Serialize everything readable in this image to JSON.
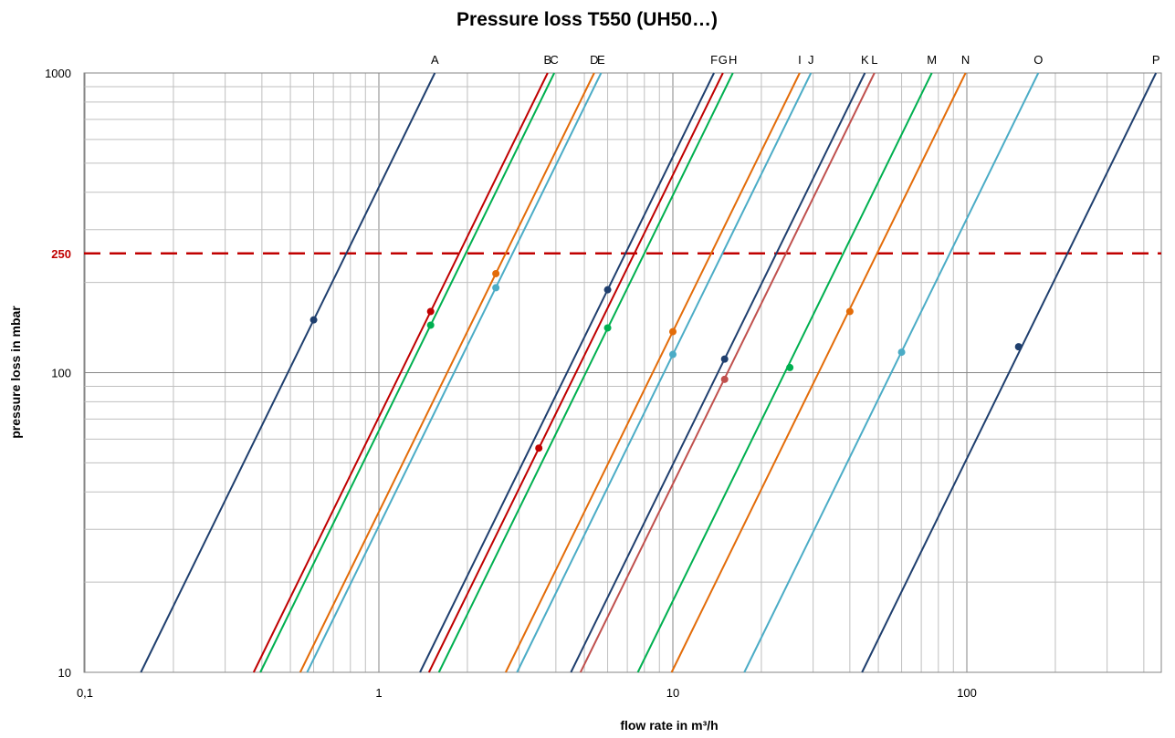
{
  "chart_data": {
    "type": "line",
    "title": "Pressure loss T550 (UH50…)",
    "xlabel": "flow rate in m³/h",
    "ylabel": "pressure loss in mbar",
    "x_scale": "log",
    "y_scale": "log",
    "xlim": [
      0.1,
      700
    ],
    "ylim": [
      10,
      1000
    ],
    "x_ticks": [
      {
        "value": 0.1,
        "label": "0,1"
      },
      {
        "value": 1,
        "label": "1"
      },
      {
        "value": 10,
        "label": "10"
      },
      {
        "value": 100,
        "label": "100"
      }
    ],
    "y_ticks": [
      {
        "value": 10,
        "label": "10"
      },
      {
        "value": 100,
        "label": "100"
      },
      {
        "value": 1000,
        "label": "1000"
      }
    ],
    "grid": true,
    "reference_line": {
      "y": 250,
      "label": "250",
      "color": "#c00000",
      "style": "dashed"
    },
    "series": [
      {
        "name": "A",
        "color": "#1f3f6e",
        "x": [
          0.155,
          1.55
        ],
        "y": [
          10,
          1000
        ],
        "marker": {
          "x": 0.6,
          "y": 150
        }
      },
      {
        "name": "B",
        "color": "#c00000",
        "x": [
          0.375,
          3.75
        ],
        "y": [
          10,
          1000
        ],
        "marker": {
          "x": 1.5,
          "y": 160
        }
      },
      {
        "name": "C",
        "color": "#00b050",
        "x": [
          0.395,
          3.95
        ],
        "y": [
          10,
          1000
        ],
        "marker": {
          "x": 1.5,
          "y": 144
        }
      },
      {
        "name": "D",
        "color": "#e36c09",
        "x": [
          0.54,
          5.4
        ],
        "y": [
          10,
          1000
        ],
        "marker": {
          "x": 2.5,
          "y": 214
        }
      },
      {
        "name": "E",
        "color": "#4bacc6",
        "x": [
          0.57,
          5.7
        ],
        "y": [
          10,
          1000
        ],
        "marker": {
          "x": 2.5,
          "y": 192
        }
      },
      {
        "name": "F",
        "color": "#1f3f6e",
        "x": [
          1.38,
          13.8
        ],
        "y": [
          10,
          1000
        ],
        "marker": {
          "x": 6,
          "y": 189
        }
      },
      {
        "name": "G",
        "color": "#c00000",
        "x": [
          1.48,
          14.8
        ],
        "y": [
          10,
          1000
        ],
        "marker": {
          "x": 3.5,
          "y": 56
        }
      },
      {
        "name": "H",
        "color": "#00b050",
        "x": [
          1.6,
          16
        ],
        "y": [
          10,
          1000
        ],
        "marker": {
          "x": 6,
          "y": 141
        }
      },
      {
        "name": "I",
        "color": "#e36c09",
        "x": [
          2.7,
          27
        ],
        "y": [
          10,
          1000
        ],
        "marker": {
          "x": 10,
          "y": 137
        }
      },
      {
        "name": "J",
        "color": "#4bacc6",
        "x": [
          2.95,
          29.5
        ],
        "y": [
          10,
          1000
        ],
        "marker": {
          "x": 10,
          "y": 115
        }
      },
      {
        "name": "K",
        "color": "#1f3f6e",
        "x": [
          4.5,
          45
        ],
        "y": [
          10,
          1000
        ],
        "marker": {
          "x": 15,
          "y": 111
        }
      },
      {
        "name": "L",
        "color": "#c0504d",
        "x": [
          4.85,
          48.5
        ],
        "y": [
          10,
          1000
        ],
        "marker": {
          "x": 15,
          "y": 95
        }
      },
      {
        "name": "M",
        "color": "#00b050",
        "x": [
          7.6,
          76
        ],
        "y": [
          10,
          1000
        ],
        "marker": {
          "x": 25,
          "y": 104
        }
      },
      {
        "name": "N",
        "color": "#e36c09",
        "x": [
          9.9,
          99
        ],
        "y": [
          10,
          1000
        ],
        "marker": {
          "x": 40,
          "y": 160
        }
      },
      {
        "name": "O",
        "color": "#4bacc6",
        "x": [
          17.5,
          175
        ],
        "y": [
          10,
          1000
        ],
        "marker": {
          "x": 60,
          "y": 117
        }
      },
      {
        "name": "P",
        "color": "#1f3f6e",
        "x": [
          44,
          440
        ],
        "y": [
          10,
          1000
        ],
        "marker": {
          "x": 150,
          "y": 122
        }
      }
    ]
  }
}
